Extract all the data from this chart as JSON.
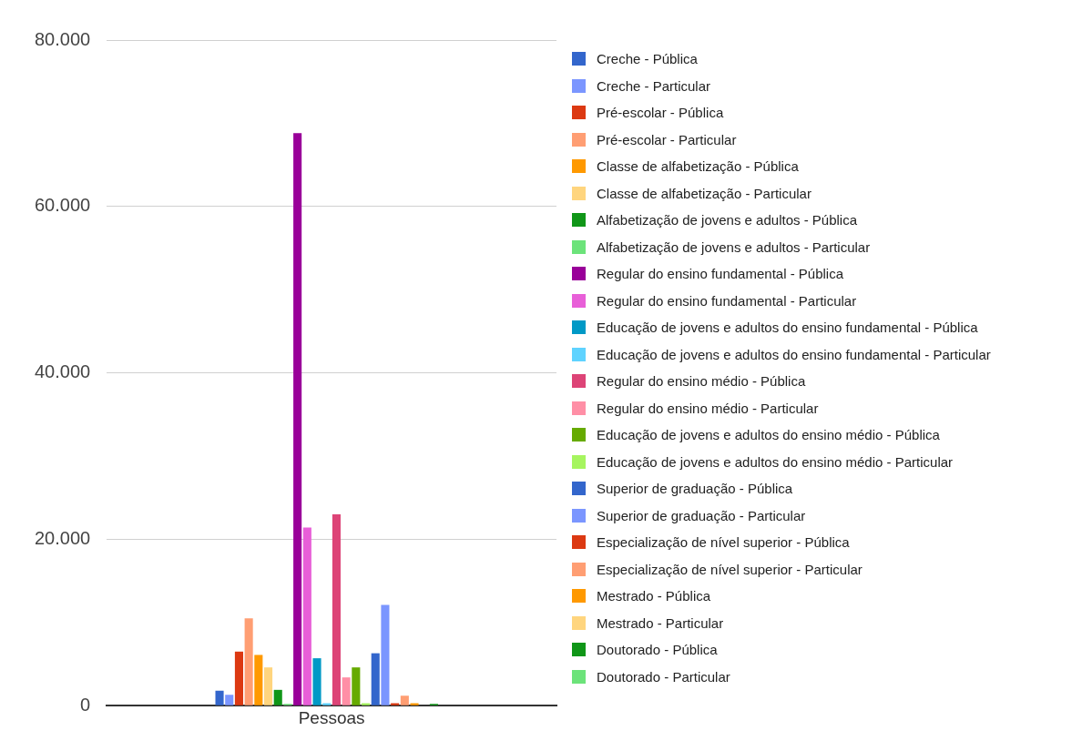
{
  "chart_data": {
    "type": "bar",
    "categories": [
      "Pessoas"
    ],
    "series": [
      {
        "name": "Creche - Pública",
        "color": "#3366cc",
        "values": [
          1800
        ]
      },
      {
        "name": "Creche - Particular",
        "color": "#7b96ff",
        "values": [
          1300
        ]
      },
      {
        "name": "Pré-escolar - Pública",
        "color": "#dc3912",
        "values": [
          6500
        ]
      },
      {
        "name": "Pré-escolar - Particular",
        "color": "#ff9e73",
        "values": [
          10500
        ]
      },
      {
        "name": "Classe de alfabetização - Pública",
        "color": "#ff9900",
        "values": [
          6100
        ]
      },
      {
        "name": "Classe de alfabetização - Particular",
        "color": "#ffd57e",
        "values": [
          4600
        ]
      },
      {
        "name": "Alfabetização de jovens e adultos - Pública",
        "color": "#109618",
        "values": [
          1900
        ]
      },
      {
        "name": "Alfabetização de jovens e adultos - Particular",
        "color": "#6ce37a",
        "values": [
          200
        ]
      },
      {
        "name": "Regular do ensino fundamental - Pública",
        "color": "#990099",
        "values": [
          68800
        ]
      },
      {
        "name": "Regular do ensino fundamental - Particular",
        "color": "#e85fd8",
        "values": [
          21400
        ]
      },
      {
        "name": "Educação de jovens e adultos do ensino fundamental - Pública",
        "color": "#0099c6",
        "values": [
          5700
        ]
      },
      {
        "name": "Educação de jovens e adultos do ensino fundamental - Particular",
        "color": "#5fd3ff",
        "values": [
          300
        ]
      },
      {
        "name": "Regular do ensino médio - Pública",
        "color": "#dd4477",
        "values": [
          23000
        ]
      },
      {
        "name": "Regular do ensino médio - Particular",
        "color": "#ff8fa6",
        "values": [
          3400
        ]
      },
      {
        "name": "Educação de jovens e adultos do ensino médio - Pública",
        "color": "#66aa00",
        "values": [
          4600
        ]
      },
      {
        "name": "Educação de jovens e adultos do ensino médio - Particular",
        "color": "#a6f55f",
        "values": [
          300
        ]
      },
      {
        "name": "Superior de graduação - Pública",
        "color": "#3366cc",
        "values": [
          6300
        ]
      },
      {
        "name": "Superior de graduação - Particular",
        "color": "#7b96ff",
        "values": [
          12100
        ]
      },
      {
        "name": "Especialização de nível superior - Pública",
        "color": "#dc3912",
        "values": [
          300
        ]
      },
      {
        "name": "Especialização de nível superior - Particular",
        "color": "#ff9e73",
        "values": [
          1200
        ]
      },
      {
        "name": "Mestrado - Pública",
        "color": "#ff9900",
        "values": [
          300
        ]
      },
      {
        "name": "Mestrado - Particular",
        "color": "#ffd57e",
        "values": [
          0
        ]
      },
      {
        "name": "Doutorado - Pública",
        "color": "#109618",
        "values": [
          200
        ]
      },
      {
        "name": "Doutorado - Particular",
        "color": "#6ce37a",
        "values": [
          0
        ]
      }
    ],
    "ylim": [
      0,
      80000
    ],
    "yticks": [
      {
        "value": 0,
        "label": "0"
      },
      {
        "value": 20000,
        "label": "20.000"
      },
      {
        "value": 40000,
        "label": "40.000"
      },
      {
        "value": 60000,
        "label": "60.000"
      },
      {
        "value": 80000,
        "label": "80.000"
      }
    ],
    "grid": "y",
    "legend": "right"
  }
}
